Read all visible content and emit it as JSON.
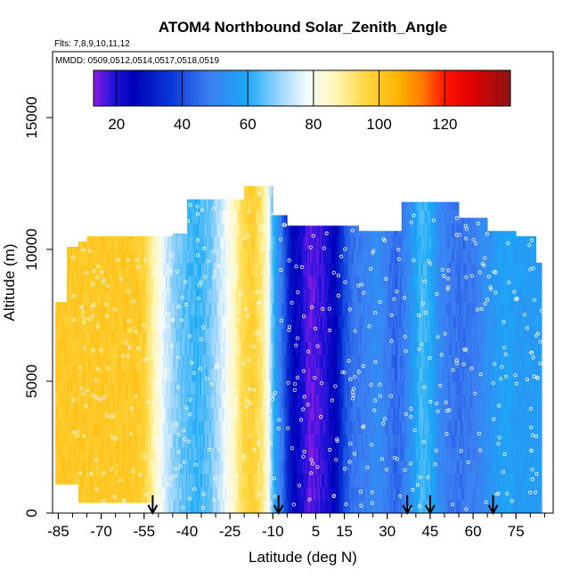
{
  "chart_data": {
    "type": "heatmap",
    "title": "ATOM4 Northbound Solar_Zenith_Angle",
    "flights_note": "Flts: 7,8,9,10,11,12",
    "dates_note": "MMDD: 0509,0512,0514,0517,0518,0519",
    "xlabel": "Latitude (deg N)",
    "ylabel": "Altitude (m)",
    "xlim": [
      -87,
      88
    ],
    "ylim": [
      0,
      17500
    ],
    "x_tick_values": [
      -85,
      -70,
      -55,
      -40,
      -25,
      -10,
      5,
      15,
      30,
      45,
      60,
      75
    ],
    "x_tick_labels": [
      "-85",
      "-70",
      "-55",
      "-40",
      "-25",
      "-10",
      "5",
      "15",
      "30",
      "45",
      "60",
      "75"
    ],
    "x_minor_step": 5,
    "y_tick_values": [
      0,
      5000,
      10000,
      15000
    ],
    "y_tick_labels": [
      "0",
      "5000",
      "10000",
      "15000"
    ],
    "colorbar": {
      "min": 13,
      "max": 140,
      "tick_values": [
        20,
        40,
        60,
        80,
        100,
        120
      ],
      "tick_labels": [
        "20",
        "40",
        "60",
        "80",
        "100",
        "120"
      ],
      "color_stops": [
        {
          "value": 13,
          "color": "#8c1ae6"
        },
        {
          "value": 19,
          "color": "#1f14d9"
        },
        {
          "value": 25,
          "color": "#0000b8"
        },
        {
          "value": 37,
          "color": "#0a3ad8"
        },
        {
          "value": 48,
          "color": "#3d7ef2"
        },
        {
          "value": 60,
          "color": "#1aaaf6"
        },
        {
          "value": 70,
          "color": "#9fd6fb"
        },
        {
          "value": 78,
          "color": "#f4fbfd"
        },
        {
          "value": 86,
          "color": "#fff8c0"
        },
        {
          "value": 96,
          "color": "#ffd740"
        },
        {
          "value": 106,
          "color": "#ffb300"
        },
        {
          "value": 113,
          "color": "#ff7a00"
        },
        {
          "value": 120,
          "color": "#ff1500"
        },
        {
          "value": 128,
          "color": "#e00000"
        },
        {
          "value": 140,
          "color": "#8a1515"
        }
      ]
    },
    "latitude_profile": {
      "latitudes": [
        -87,
        -78,
        -70,
        -63,
        -58,
        -55,
        -52,
        -48,
        -44,
        -40,
        -36,
        -32,
        -28,
        -24,
        -20,
        -17,
        -14,
        -12,
        -10,
        -8,
        -6,
        -4,
        -2,
        0,
        3,
        6,
        9,
        11,
        13,
        15,
        18,
        21,
        24,
        27,
        30,
        33,
        36,
        39,
        42,
        45,
        48,
        52,
        56,
        60,
        64,
        68,
        72,
        76,
        80,
        84,
        88
      ],
      "sza_deg": [
        100,
        100,
        100,
        100,
        100,
        98,
        88,
        76,
        68,
        64,
        62,
        66,
        74,
        84,
        96,
        98,
        92,
        84,
        64,
        52,
        42,
        30,
        24,
        21,
        15,
        17,
        20,
        24,
        30,
        40,
        46,
        48,
        50,
        52,
        48,
        44,
        48,
        56,
        64,
        60,
        52,
        47,
        46,
        48,
        52,
        56,
        58,
        56,
        56,
        56,
        56
      ]
    },
    "coverage": {
      "lat_edges": [
        -86,
        -82,
        -78,
        -75,
        -65,
        -55,
        -45,
        -40,
        -30,
        -20,
        -10,
        -5,
        0,
        10,
        20,
        35,
        45,
        55,
        65,
        75,
        82,
        84
      ],
      "max_altitude_m": [
        8000,
        10100,
        10300,
        10500,
        10500,
        10500,
        10600,
        11900,
        11900,
        12400,
        11300,
        10900,
        10900,
        10900,
        10700,
        11800,
        11800,
        11200,
        10700,
        10500,
        9500
      ]
    },
    "annotation_arrows_lat": [
      -52,
      -8,
      37,
      45,
      67
    ],
    "observations": "white open-circle sample points scattered across the populated region"
  }
}
